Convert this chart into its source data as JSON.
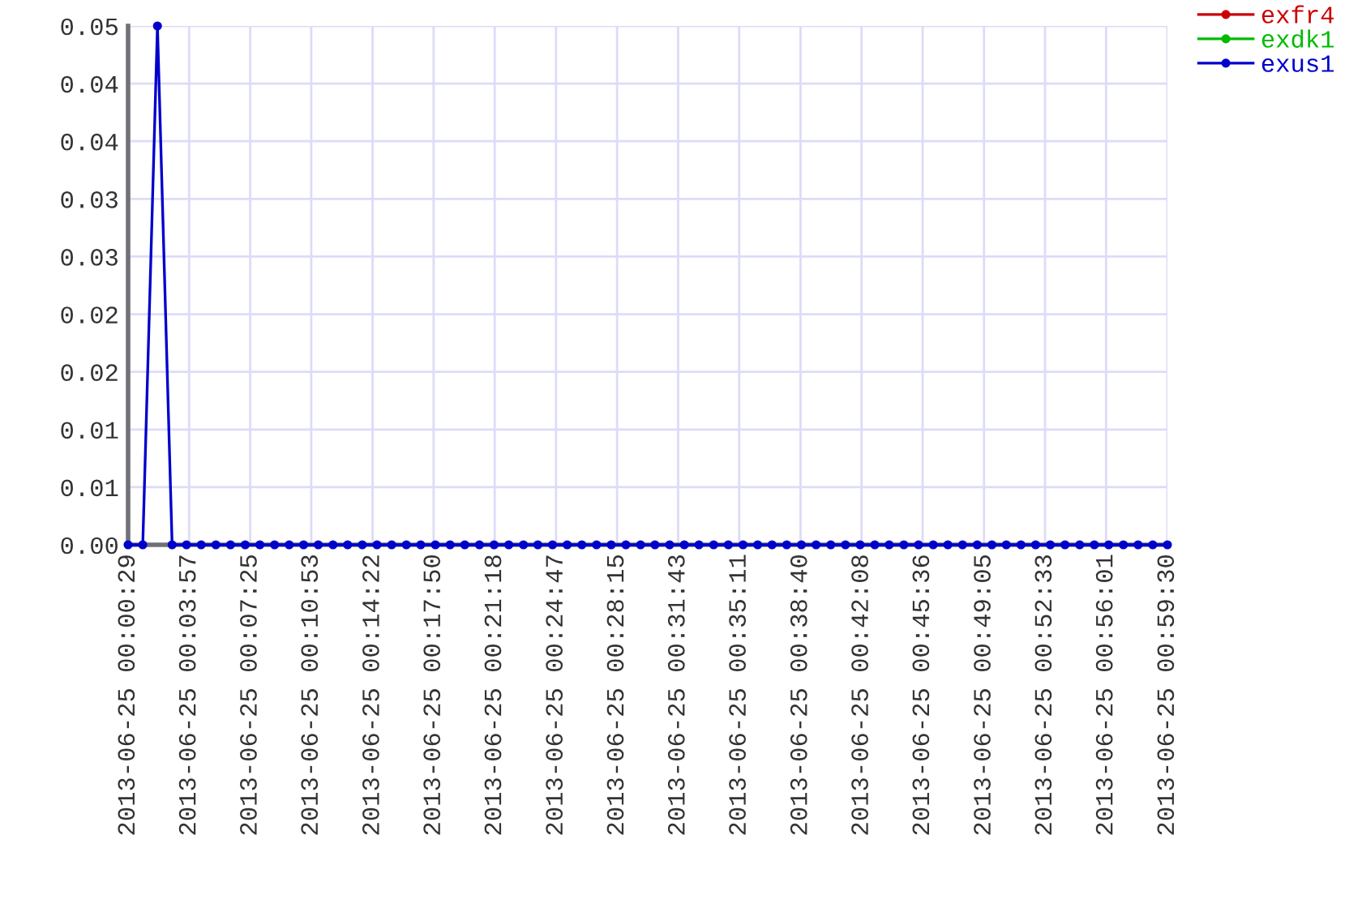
{
  "chart_data": {
    "type": "line",
    "x": [
      "2013-06-25T00:00:29",
      "2013-06-25T00:01:19",
      "2013-06-25T00:02:09",
      "2013-06-25T00:02:59",
      "2013-06-25T00:03:48",
      "2013-06-25T00:04:38",
      "2013-06-25T00:05:28",
      "2013-06-25T00:06:18",
      "2013-06-25T00:07:08",
      "2013-06-25T00:07:58",
      "2013-06-25T00:08:48",
      "2013-06-25T00:09:38",
      "2013-06-25T00:10:27",
      "2013-06-25T00:11:17",
      "2013-06-25T00:12:07",
      "2013-06-25T00:12:57",
      "2013-06-25T00:13:47",
      "2013-06-25T00:14:37",
      "2013-06-25T00:15:27",
      "2013-06-25T00:16:17",
      "2013-06-25T00:17:06",
      "2013-06-25T00:17:56",
      "2013-06-25T00:18:46",
      "2013-06-25T00:19:36",
      "2013-06-25T00:20:26",
      "2013-06-25T00:21:16",
      "2013-06-25T00:22:06",
      "2013-06-25T00:22:56",
      "2013-06-25T00:23:45",
      "2013-06-25T00:24:35",
      "2013-06-25T00:25:25",
      "2013-06-25T00:26:15",
      "2013-06-25T00:27:05",
      "2013-06-25T00:27:55",
      "2013-06-25T00:28:45",
      "2013-06-25T00:29:35",
      "2013-06-25T00:30:24",
      "2013-06-25T00:31:14",
      "2013-06-25T00:32:04",
      "2013-06-25T00:32:54",
      "2013-06-25T00:33:44",
      "2013-06-25T00:34:34",
      "2013-06-25T00:35:24",
      "2013-06-25T00:36:14",
      "2013-06-25T00:37:03",
      "2013-06-25T00:37:53",
      "2013-06-25T00:38:43",
      "2013-06-25T00:39:33",
      "2013-06-25T00:40:23",
      "2013-06-25T00:41:13",
      "2013-06-25T00:42:03",
      "2013-06-25T00:42:53",
      "2013-06-25T00:43:42",
      "2013-06-25T00:44:32",
      "2013-06-25T00:45:22",
      "2013-06-25T00:46:12",
      "2013-06-25T00:47:02",
      "2013-06-25T00:47:52",
      "2013-06-25T00:48:42",
      "2013-06-25T00:49:32",
      "2013-06-25T00:50:21",
      "2013-06-25T00:51:11",
      "2013-06-25T00:52:01",
      "2013-06-25T00:52:51",
      "2013-06-25T00:53:41",
      "2013-06-25T00:54:31",
      "2013-06-25T00:55:21",
      "2013-06-25T00:56:10",
      "2013-06-25T00:57:00",
      "2013-06-25T00:57:50",
      "2013-06-25T00:58:40",
      "2013-06-25T00:59:30"
    ],
    "series": [
      {
        "name": "exfr4",
        "color": "#cc0000",
        "values": [
          null,
          null,
          null,
          null,
          null,
          null,
          null,
          null,
          null,
          null,
          null,
          null,
          null,
          null,
          null,
          null,
          null,
          null,
          null,
          null,
          null,
          null,
          null,
          null,
          null,
          null,
          null,
          null,
          null,
          null,
          null,
          null,
          null,
          null,
          null,
          null,
          null,
          null,
          null,
          null,
          null,
          null,
          null,
          null,
          null,
          null,
          null,
          null,
          null,
          null,
          null,
          null,
          null,
          null,
          null,
          null,
          null,
          null,
          null,
          null,
          null,
          null,
          null,
          null,
          null,
          null,
          null,
          null,
          null,
          null,
          null,
          null
        ]
      },
      {
        "name": "exdk1",
        "color": "#00bb00",
        "values": [
          null,
          null,
          null,
          null,
          null,
          null,
          null,
          null,
          null,
          null,
          null,
          null,
          null,
          null,
          null,
          null,
          null,
          null,
          null,
          null,
          null,
          null,
          null,
          null,
          null,
          null,
          null,
          null,
          null,
          null,
          null,
          null,
          null,
          null,
          null,
          null,
          null,
          null,
          null,
          null,
          null,
          null,
          null,
          null,
          null,
          null,
          null,
          null,
          null,
          null,
          null,
          null,
          null,
          null,
          null,
          null,
          null,
          null,
          null,
          null,
          null,
          null,
          null,
          null,
          null,
          null,
          null,
          null,
          null,
          null,
          null,
          null
        ]
      },
      {
        "name": "exus1",
        "color": "#0000cc",
        "values": [
          0,
          0,
          0.045,
          0,
          0,
          0,
          0,
          0,
          0,
          0,
          0,
          0,
          0,
          0,
          0,
          0,
          0,
          0,
          0,
          0,
          0,
          0,
          0,
          0,
          0,
          0,
          0,
          0,
          0,
          0,
          0,
          0,
          0,
          0,
          0,
          0,
          0,
          0,
          0,
          0,
          0,
          0,
          0,
          0,
          0,
          0,
          0,
          0,
          0,
          0,
          0,
          0,
          0,
          0,
          0,
          0,
          0,
          0,
          0,
          0,
          0,
          0,
          0,
          0,
          0,
          0,
          0,
          0,
          0,
          0,
          0,
          0
        ]
      }
    ],
    "xlim": [
      "2013-06-25T00:00:29",
      "2013-06-25T00:59:30"
    ],
    "xticks": [
      {
        "value": "2013-06-25T00:00:29",
        "label": "2013-06-25 00:00:29"
      },
      {
        "value": "2013-06-25T00:03:57",
        "label": "2013-06-25 00:03:57"
      },
      {
        "value": "2013-06-25T00:07:25",
        "label": "2013-06-25 00:07:25"
      },
      {
        "value": "2013-06-25T00:10:53",
        "label": "2013-06-25 00:10:53"
      },
      {
        "value": "2013-06-25T00:14:22",
        "label": "2013-06-25 00:14:22"
      },
      {
        "value": "2013-06-25T00:17:50",
        "label": "2013-06-25 00:17:50"
      },
      {
        "value": "2013-06-25T00:21:18",
        "label": "2013-06-25 00:21:18"
      },
      {
        "value": "2013-06-25T00:24:47",
        "label": "2013-06-25 00:24:47"
      },
      {
        "value": "2013-06-25T00:28:15",
        "label": "2013-06-25 00:28:15"
      },
      {
        "value": "2013-06-25T00:31:43",
        "label": "2013-06-25 00:31:43"
      },
      {
        "value": "2013-06-25T00:35:11",
        "label": "2013-06-25 00:35:11"
      },
      {
        "value": "2013-06-25T00:38:40",
        "label": "2013-06-25 00:38:40"
      },
      {
        "value": "2013-06-25T00:42:08",
        "label": "2013-06-25 00:42:08"
      },
      {
        "value": "2013-06-25T00:45:36",
        "label": "2013-06-25 00:45:36"
      },
      {
        "value": "2013-06-25T00:49:05",
        "label": "2013-06-25 00:49:05"
      },
      {
        "value": "2013-06-25T00:52:33",
        "label": "2013-06-25 00:52:33"
      },
      {
        "value": "2013-06-25T00:56:01",
        "label": "2013-06-25 00:56:01"
      },
      {
        "value": "2013-06-25T00:59:30",
        "label": "2013-06-25 00:59:30"
      }
    ],
    "ylim": [
      0,
      0.045
    ],
    "yticks": [
      {
        "value": 0,
        "label": "0.00"
      },
      {
        "value": 0.005,
        "label": "0.01"
      },
      {
        "value": 0.01,
        "label": "0.01"
      },
      {
        "value": 0.015,
        "label": "0.02"
      },
      {
        "value": 0.02,
        "label": "0.02"
      },
      {
        "value": 0.025,
        "label": "0.03"
      },
      {
        "value": 0.03,
        "label": "0.03"
      },
      {
        "value": 0.035,
        "label": "0.04"
      },
      {
        "value": 0.04,
        "label": "0.04"
      },
      {
        "value": 0.045,
        "label": "0.05"
      }
    ],
    "grid": true,
    "legend": "top right",
    "marker": "circle",
    "line_style": "solid"
  }
}
